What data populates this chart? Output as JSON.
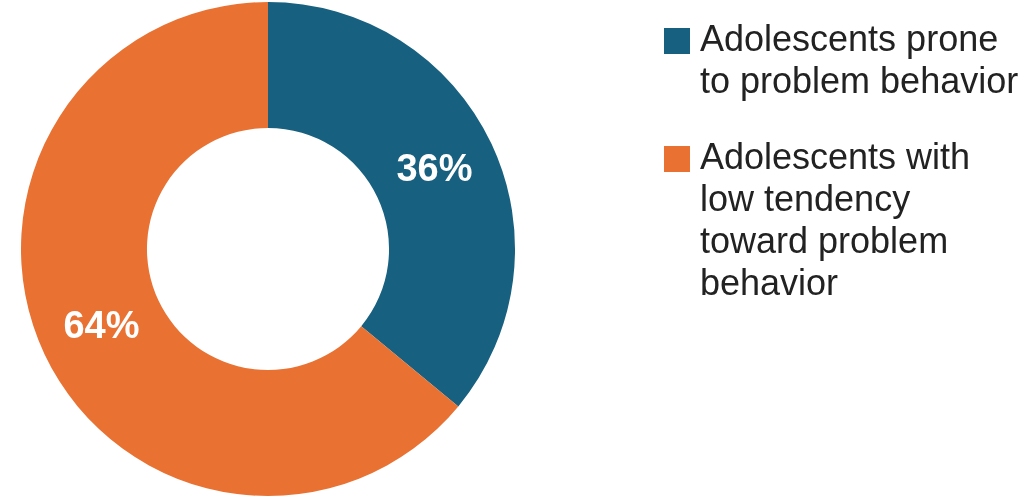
{
  "chart_data": {
    "type": "donut",
    "categories": [
      "Adolescents prone to problem behavior",
      "Adolescents with low tendency toward problem behavior"
    ],
    "values": [
      36,
      64
    ],
    "value_labels": [
      "36%",
      "64%"
    ],
    "colors": [
      "#17607f",
      "#e97132"
    ],
    "legend": "right"
  }
}
